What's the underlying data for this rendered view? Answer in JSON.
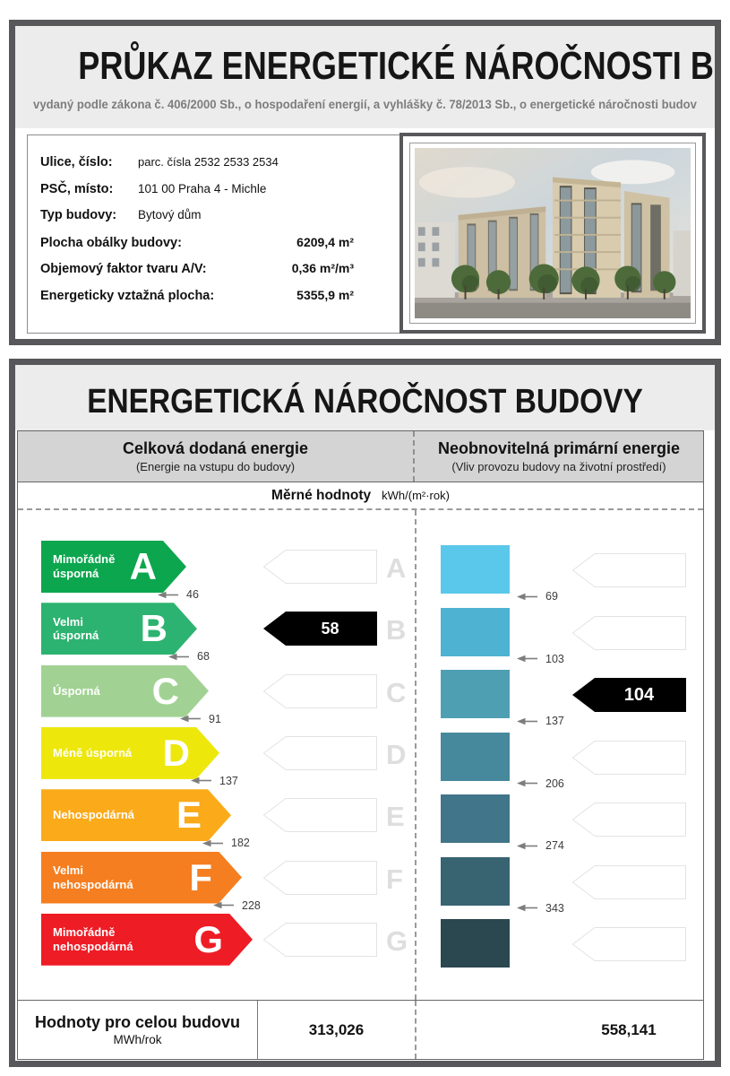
{
  "header": {
    "title": "PRŮKAZ ENERGETICKÉ NÁROČNOSTI BUDOVY",
    "subtitle": "vydaný podle zákona č. 406/2000 Sb., o hospodaření energií, a vyhlášky č. 78/2013 Sb., o energetické náročnosti budov"
  },
  "building_info": {
    "rows": [
      {
        "label": "Ulice, číslo:",
        "value": "parc. čísla 2532 2533 2534"
      },
      {
        "label": "PSČ, místo:",
        "value": "101 00  Praha 4  - Michle"
      },
      {
        "label": "Typ budovy:",
        "value": "Bytový dům"
      },
      {
        "label": "Plocha obálky budovy:",
        "value": "6209,4 m²"
      },
      {
        "label": "Objemový faktor tvaru A/V:",
        "value": "0,36 m²/m³"
      },
      {
        "label": "Energeticky vztažná plocha:",
        "value": "5355,9 m²"
      }
    ]
  },
  "section": {
    "title": "ENERGETICKÁ NÁROČNOST BUDOVY",
    "left_header": {
      "title": "Celková dodaná energie",
      "subtitle": "(Energie na vstupu do budovy)"
    },
    "right_header": {
      "title": "Neobnovitelná primární energie",
      "subtitle": "(Vliv provozu budovy na životní prostředí)"
    },
    "units_label": "Měrné hodnoty",
    "units": "kWh/(m²·rok)"
  },
  "chart_data": {
    "type": "energy-label-scale",
    "unit": "kWh/(m²·rok)",
    "classes": [
      {
        "letter": "A",
        "name": "Mimořádně\núsporná",
        "color": "#0ca64e",
        "bar_color": "#5ac8ea",
        "delivered_upper": 46,
        "primary_upper": 69
      },
      {
        "letter": "B",
        "name": "Velmi\núsporná",
        "color": "#2db371",
        "bar_color": "#4eb2d2",
        "delivered_upper": 68,
        "primary_upper": 103
      },
      {
        "letter": "C",
        "name": "Úsporná",
        "color": "#a1d293",
        "bar_color": "#4f9fb3",
        "delivered_upper": 91,
        "primary_upper": 137
      },
      {
        "letter": "D",
        "name": "Méně úsporná",
        "color": "#ede70c",
        "bar_color": "#46899d",
        "delivered_upper": 137,
        "primary_upper": 206
      },
      {
        "letter": "E",
        "name": "Nehospodárná",
        "color": "#fbaa1a",
        "bar_color": "#417589",
        "delivered_upper": 182,
        "primary_upper": 274
      },
      {
        "letter": "F",
        "name": "Velmi\nnehospodárná",
        "color": "#f57e20",
        "bar_color": "#386371",
        "delivered_upper": 228,
        "primary_upper": 343
      },
      {
        "letter": "G",
        "name": "Mimořádně\nnehospodárná",
        "color": "#ee1c25",
        "bar_color": "#2b4750",
        "delivered_upper": null,
        "primary_upper": null
      }
    ],
    "indicators": {
      "delivered": {
        "value": "58",
        "class_index": 1
      },
      "primary": {
        "value": "104",
        "class_index": 2
      }
    },
    "indicator_color": "#000000"
  },
  "totals": {
    "label": "Hodnoty pro celou budovu",
    "unit": "MWh/rok",
    "delivered": "313,026",
    "primary": "558,141"
  }
}
